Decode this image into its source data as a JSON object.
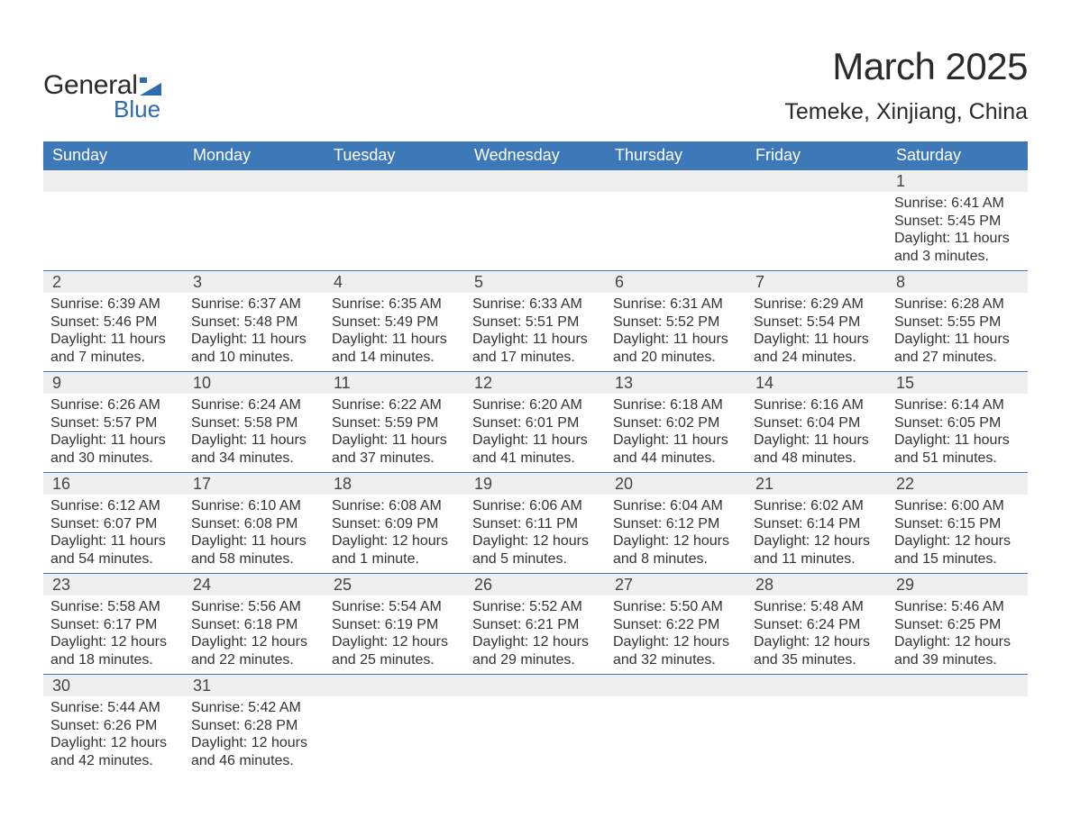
{
  "header": {
    "logo_text_1": "General",
    "logo_text_2": "Blue",
    "month_title": "March 2025",
    "location": "Temeke, Xinjiang, China"
  },
  "styling": {
    "brand_blue": "#3d78b8",
    "logo_blue": "#2e6bad",
    "background": "#ffffff",
    "daynum_bg": "#efefef",
    "text_color": "#333333",
    "title_color": "#2a2a2a",
    "month_title_fontsize": 42,
    "location_fontsize": 25,
    "weekday_fontsize": 18,
    "daynum_fontsize": 18,
    "daydata_fontsize": 16
  },
  "calendar": {
    "weekdays": [
      "Sunday",
      "Monday",
      "Tuesday",
      "Wednesday",
      "Thursday",
      "Friday",
      "Saturday"
    ],
    "weeks": [
      [
        null,
        null,
        null,
        null,
        null,
        null,
        {
          "n": "1",
          "sunrise": "Sunrise: 6:41 AM",
          "sunset": "Sunset: 5:45 PM",
          "daylight1": "Daylight: 11 hours",
          "daylight2": "and 3 minutes."
        }
      ],
      [
        {
          "n": "2",
          "sunrise": "Sunrise: 6:39 AM",
          "sunset": "Sunset: 5:46 PM",
          "daylight1": "Daylight: 11 hours",
          "daylight2": "and 7 minutes."
        },
        {
          "n": "3",
          "sunrise": "Sunrise: 6:37 AM",
          "sunset": "Sunset: 5:48 PM",
          "daylight1": "Daylight: 11 hours",
          "daylight2": "and 10 minutes."
        },
        {
          "n": "4",
          "sunrise": "Sunrise: 6:35 AM",
          "sunset": "Sunset: 5:49 PM",
          "daylight1": "Daylight: 11 hours",
          "daylight2": "and 14 minutes."
        },
        {
          "n": "5",
          "sunrise": "Sunrise: 6:33 AM",
          "sunset": "Sunset: 5:51 PM",
          "daylight1": "Daylight: 11 hours",
          "daylight2": "and 17 minutes."
        },
        {
          "n": "6",
          "sunrise": "Sunrise: 6:31 AM",
          "sunset": "Sunset: 5:52 PM",
          "daylight1": "Daylight: 11 hours",
          "daylight2": "and 20 minutes."
        },
        {
          "n": "7",
          "sunrise": "Sunrise: 6:29 AM",
          "sunset": "Sunset: 5:54 PM",
          "daylight1": "Daylight: 11 hours",
          "daylight2": "and 24 minutes."
        },
        {
          "n": "8",
          "sunrise": "Sunrise: 6:28 AM",
          "sunset": "Sunset: 5:55 PM",
          "daylight1": "Daylight: 11 hours",
          "daylight2": "and 27 minutes."
        }
      ],
      [
        {
          "n": "9",
          "sunrise": "Sunrise: 6:26 AM",
          "sunset": "Sunset: 5:57 PM",
          "daylight1": "Daylight: 11 hours",
          "daylight2": "and 30 minutes."
        },
        {
          "n": "10",
          "sunrise": "Sunrise: 6:24 AM",
          "sunset": "Sunset: 5:58 PM",
          "daylight1": "Daylight: 11 hours",
          "daylight2": "and 34 minutes."
        },
        {
          "n": "11",
          "sunrise": "Sunrise: 6:22 AM",
          "sunset": "Sunset: 5:59 PM",
          "daylight1": "Daylight: 11 hours",
          "daylight2": "and 37 minutes."
        },
        {
          "n": "12",
          "sunrise": "Sunrise: 6:20 AM",
          "sunset": "Sunset: 6:01 PM",
          "daylight1": "Daylight: 11 hours",
          "daylight2": "and 41 minutes."
        },
        {
          "n": "13",
          "sunrise": "Sunrise: 6:18 AM",
          "sunset": "Sunset: 6:02 PM",
          "daylight1": "Daylight: 11 hours",
          "daylight2": "and 44 minutes."
        },
        {
          "n": "14",
          "sunrise": "Sunrise: 6:16 AM",
          "sunset": "Sunset: 6:04 PM",
          "daylight1": "Daylight: 11 hours",
          "daylight2": "and 48 minutes."
        },
        {
          "n": "15",
          "sunrise": "Sunrise: 6:14 AM",
          "sunset": "Sunset: 6:05 PM",
          "daylight1": "Daylight: 11 hours",
          "daylight2": "and 51 minutes."
        }
      ],
      [
        {
          "n": "16",
          "sunrise": "Sunrise: 6:12 AM",
          "sunset": "Sunset: 6:07 PM",
          "daylight1": "Daylight: 11 hours",
          "daylight2": "and 54 minutes."
        },
        {
          "n": "17",
          "sunrise": "Sunrise: 6:10 AM",
          "sunset": "Sunset: 6:08 PM",
          "daylight1": "Daylight: 11 hours",
          "daylight2": "and 58 minutes."
        },
        {
          "n": "18",
          "sunrise": "Sunrise: 6:08 AM",
          "sunset": "Sunset: 6:09 PM",
          "daylight1": "Daylight: 12 hours",
          "daylight2": "and 1 minute."
        },
        {
          "n": "19",
          "sunrise": "Sunrise: 6:06 AM",
          "sunset": "Sunset: 6:11 PM",
          "daylight1": "Daylight: 12 hours",
          "daylight2": "and 5 minutes."
        },
        {
          "n": "20",
          "sunrise": "Sunrise: 6:04 AM",
          "sunset": "Sunset: 6:12 PM",
          "daylight1": "Daylight: 12 hours",
          "daylight2": "and 8 minutes."
        },
        {
          "n": "21",
          "sunrise": "Sunrise: 6:02 AM",
          "sunset": "Sunset: 6:14 PM",
          "daylight1": "Daylight: 12 hours",
          "daylight2": "and 11 minutes."
        },
        {
          "n": "22",
          "sunrise": "Sunrise: 6:00 AM",
          "sunset": "Sunset: 6:15 PM",
          "daylight1": "Daylight: 12 hours",
          "daylight2": "and 15 minutes."
        }
      ],
      [
        {
          "n": "23",
          "sunrise": "Sunrise: 5:58 AM",
          "sunset": "Sunset: 6:17 PM",
          "daylight1": "Daylight: 12 hours",
          "daylight2": "and 18 minutes."
        },
        {
          "n": "24",
          "sunrise": "Sunrise: 5:56 AM",
          "sunset": "Sunset: 6:18 PM",
          "daylight1": "Daylight: 12 hours",
          "daylight2": "and 22 minutes."
        },
        {
          "n": "25",
          "sunrise": "Sunrise: 5:54 AM",
          "sunset": "Sunset: 6:19 PM",
          "daylight1": "Daylight: 12 hours",
          "daylight2": "and 25 minutes."
        },
        {
          "n": "26",
          "sunrise": "Sunrise: 5:52 AM",
          "sunset": "Sunset: 6:21 PM",
          "daylight1": "Daylight: 12 hours",
          "daylight2": "and 29 minutes."
        },
        {
          "n": "27",
          "sunrise": "Sunrise: 5:50 AM",
          "sunset": "Sunset: 6:22 PM",
          "daylight1": "Daylight: 12 hours",
          "daylight2": "and 32 minutes."
        },
        {
          "n": "28",
          "sunrise": "Sunrise: 5:48 AM",
          "sunset": "Sunset: 6:24 PM",
          "daylight1": "Daylight: 12 hours",
          "daylight2": "and 35 minutes."
        },
        {
          "n": "29",
          "sunrise": "Sunrise: 5:46 AM",
          "sunset": "Sunset: 6:25 PM",
          "daylight1": "Daylight: 12 hours",
          "daylight2": "and 39 minutes."
        }
      ],
      [
        {
          "n": "30",
          "sunrise": "Sunrise: 5:44 AM",
          "sunset": "Sunset: 6:26 PM",
          "daylight1": "Daylight: 12 hours",
          "daylight2": "and 42 minutes."
        },
        {
          "n": "31",
          "sunrise": "Sunrise: 5:42 AM",
          "sunset": "Sunset: 6:28 PM",
          "daylight1": "Daylight: 12 hours",
          "daylight2": "and 46 minutes."
        },
        null,
        null,
        null,
        null,
        null
      ]
    ]
  }
}
